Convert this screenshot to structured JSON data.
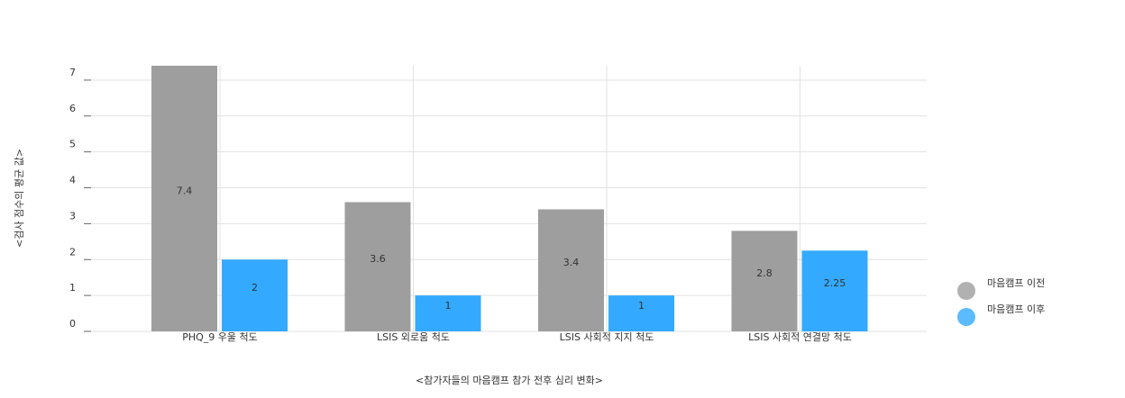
{
  "chart_data": {
    "type": "bar",
    "y_label": "<검사 점수의 평균 값>",
    "x_label": "<참가자들의 마음캠프 참가 전후 심리 변화>",
    "categories": [
      "PHQ_9 우울 척도",
      "LSIS 외로움 척도",
      "LSIS 사회적 지지 척도",
      "LSIS 사회적 연결망 척도"
    ],
    "series": [
      {
        "name": "마음캠프 이전",
        "color": "#9e9e9e",
        "values": [
          7.4,
          3.6,
          3.4,
          2.8
        ]
      },
      {
        "name": "마음캠프 이후",
        "color": "#33aaff",
        "values": [
          2,
          1,
          1,
          2.25
        ]
      }
    ],
    "ylim": [
      0,
      7.4
    ],
    "yticks": [
      0,
      1,
      2,
      3,
      4,
      5,
      6,
      7
    ],
    "grid": true,
    "legend": "right"
  }
}
